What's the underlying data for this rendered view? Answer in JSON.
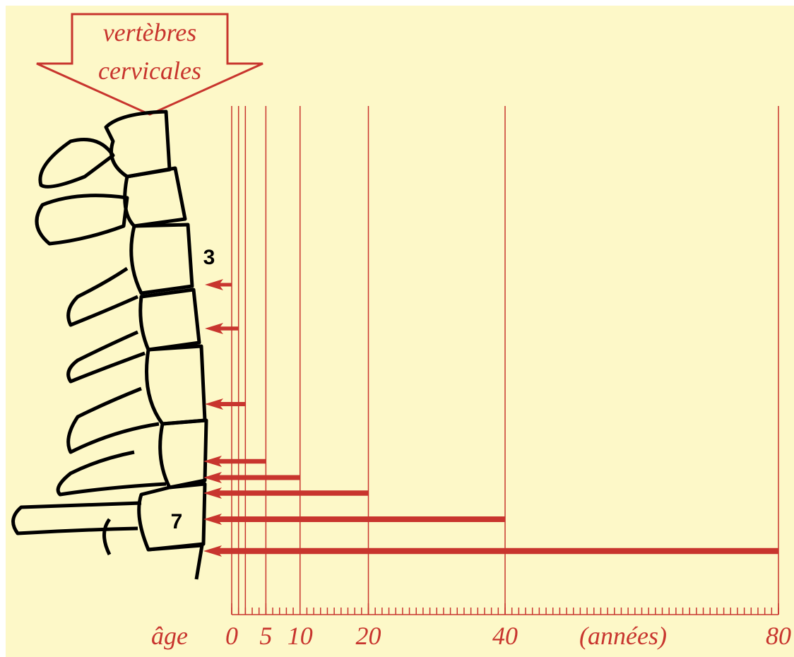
{
  "chart_data": {
    "type": "bar",
    "orientation": "horizontal",
    "title": [
      "vertèbres",
      "cervicales"
    ],
    "xlabel": "âge",
    "xunit": "(années)",
    "values": [
      0,
      1,
      2,
      5,
      10,
      20,
      40,
      80
    ],
    "color": "#c8352e",
    "xlim": [
      0,
      80
    ],
    "xticks": [
      0,
      5,
      10,
      20,
      40,
      80
    ],
    "minor_xtick_step": 1,
    "annotations": [
      "3",
      "7"
    ]
  }
}
